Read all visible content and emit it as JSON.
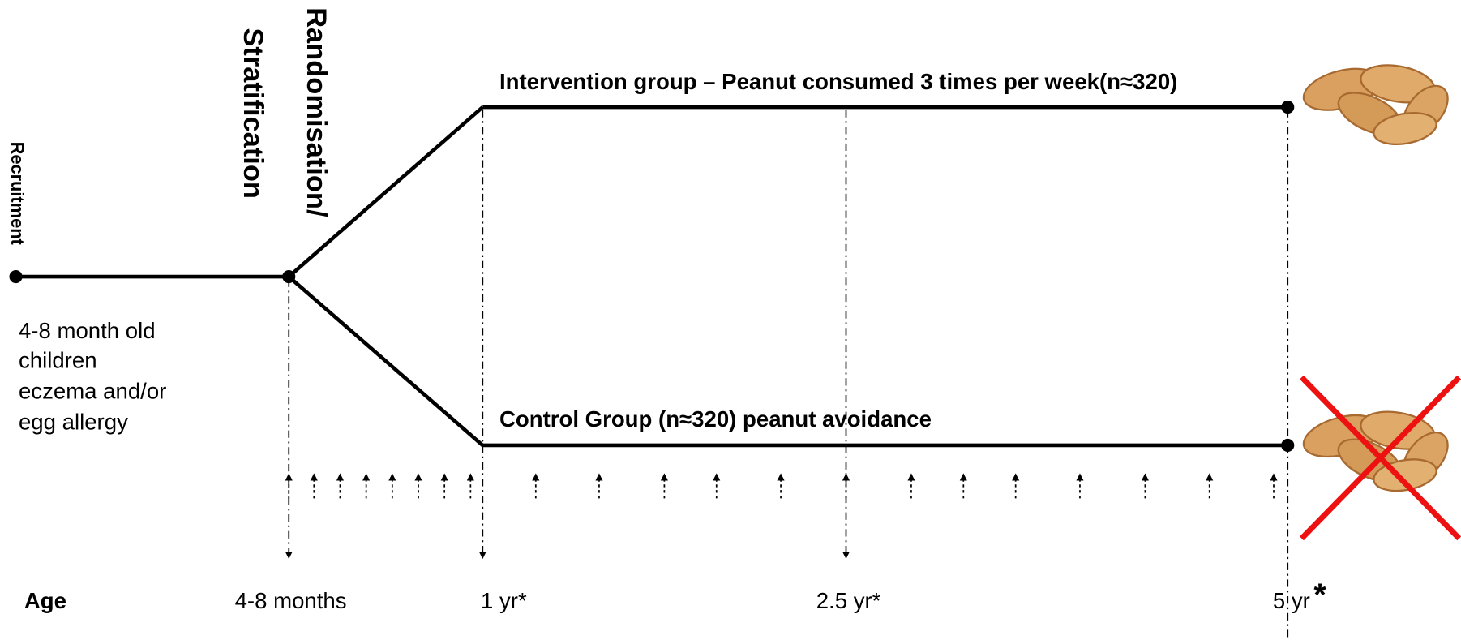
{
  "recruitment": "Recruitment",
  "randomisation": [
    "Randomisation/",
    "Stratification"
  ],
  "intervention": "Intervention group – Peanut consumed 3 times per week(n≈320)",
  "control": "Control Group (n≈320) peanut avoidance",
  "inclusion": [
    "4-8 month old",
    "children",
    "eczema and/or",
    "egg allergy"
  ],
  "age": {
    "label": "Age",
    "points": [
      "4-8 months",
      "1 yr*",
      "2.5 yr*",
      "5 yr"
    ],
    "final_mark": "*"
  }
}
